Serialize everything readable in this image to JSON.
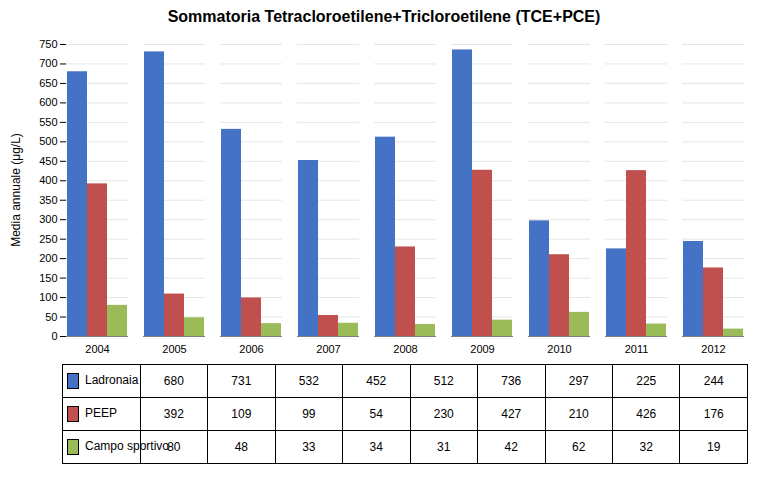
{
  "chart_data": {
    "type": "bar",
    "title": "Sommatoria Tetracloroetilene+Tricloroetilene (TCE+PCE)",
    "ylabel": "Media annuale (μg/L)",
    "categories": [
      "2004",
      "2005",
      "2006",
      "2007",
      "2008",
      "2009",
      "2010",
      "2011",
      "2012"
    ],
    "series": [
      {
        "name": "Ladronaia",
        "color": "#4472C4",
        "values": [
          680,
          731,
          532,
          452,
          512,
          736,
          297,
          225,
          244
        ]
      },
      {
        "name": "PEEP",
        "color": "#C0504D",
        "values": [
          392,
          109,
          99,
          54,
          230,
          427,
          210,
          426,
          176
        ]
      },
      {
        "name": "Campo sportivo",
        "color": "#9BBB59",
        "values": [
          80,
          48,
          33,
          34,
          31,
          42,
          62,
          32,
          19
        ]
      }
    ],
    "ylim": [
      0,
      750
    ],
    "yticks": [
      0,
      50,
      100,
      150,
      200,
      250,
      300,
      350,
      400,
      450,
      500,
      550,
      600,
      650,
      700,
      750
    ],
    "grid": true,
    "legend": "bottom"
  }
}
